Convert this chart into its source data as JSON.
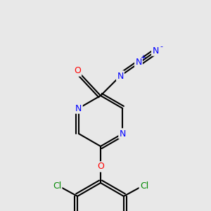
{
  "bg_color": "#e8e8e8",
  "bond_color": "#000000",
  "bond_width": 1.5,
  "atom_colors": {
    "N": "#0000ff",
    "O": "#ff0000",
    "Cl": "#008800",
    "C": "#000000"
  },
  "font_size": 9
}
